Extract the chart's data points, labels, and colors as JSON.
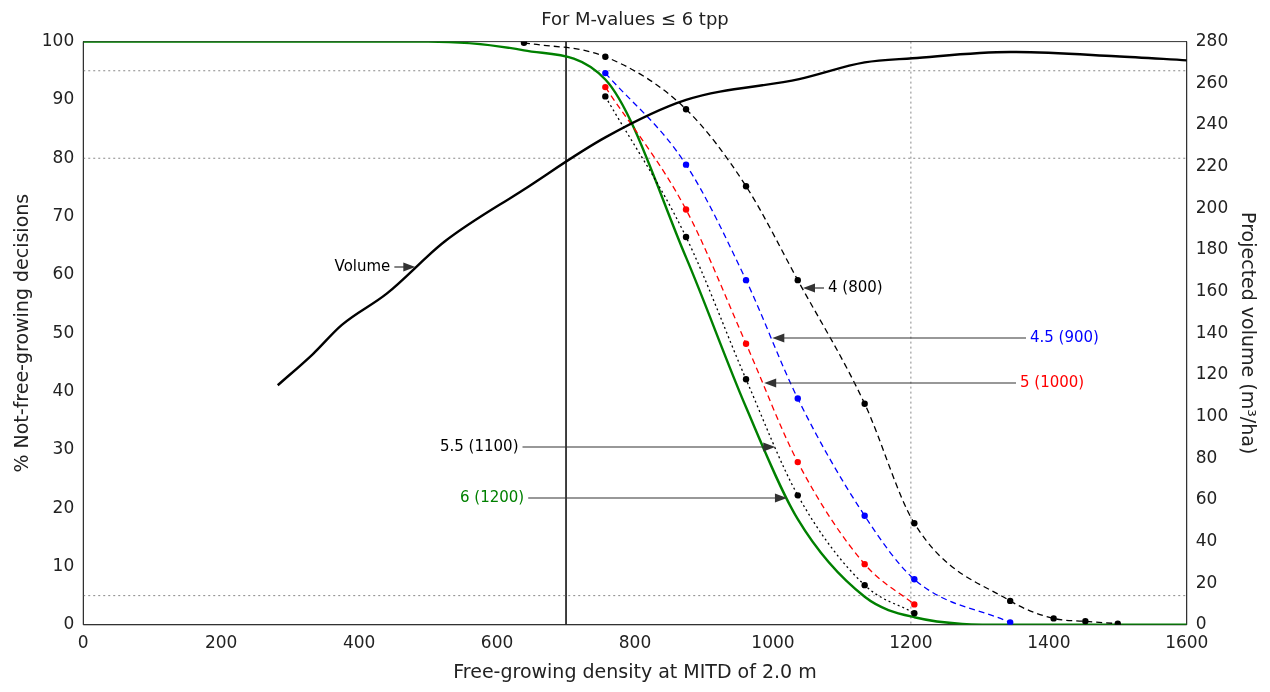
{
  "chart_data": {
    "type": "line",
    "title": "For M-values ≤ 6 tpp",
    "xlabel": "Free-growing density at MITD of 2.0 m",
    "ylabel": "% Not-free-growing decisions",
    "y2label": "Projected volume (m³/ha)",
    "xlim": [
      0,
      1600
    ],
    "xticks": [
      0,
      200,
      400,
      600,
      800,
      1000,
      1200,
      1400,
      1600
    ],
    "ylim": [
      0,
      100
    ],
    "yticks": [
      0,
      10,
      20,
      30,
      40,
      50,
      60,
      70,
      80,
      90,
      100
    ],
    "y2lim": [
      0,
      280
    ],
    "y2ticks": [
      0,
      20,
      40,
      60,
      80,
      100,
      120,
      140,
      160,
      180,
      200,
      220,
      240,
      260,
      280
    ],
    "grid": false,
    "legend": false,
    "x": [
      0,
      100,
      200,
      300,
      400,
      500,
      639,
      757,
      874,
      961,
      1036,
      1133,
      1205,
      1344,
      1407,
      1453,
      1500,
      1600
    ],
    "series": [
      {
        "name": "Volume",
        "color": "#000000",
        "axis": "y2",
        "marker": "none",
        "line_style": "solid",
        "x": [
          282,
          333,
          375,
          440,
          524,
          639,
          757,
          874,
          1038,
          1133,
          1202,
          1344,
          1497,
          1600
        ],
        "values": [
          115,
          130,
          144,
          159,
          184,
          209,
          234,
          252,
          262,
          270,
          272,
          275,
          273,
          271
        ]
      },
      {
        "name": "4 (800)",
        "color": "#000000",
        "marker": "circle",
        "line_style": "dashed",
        "x": [
          639,
          757,
          874,
          961,
          1036,
          1133,
          1205,
          1344,
          1407,
          1453,
          1500
        ],
        "values": [
          99.8,
          97.4,
          88.4,
          75.2,
          59.1,
          37.9,
          17.4,
          4.1,
          1.1,
          0.6,
          0.2
        ]
      },
      {
        "name": "4.5 (900)",
        "color": "#0000ff",
        "marker": "circle",
        "line_style": "dashed",
        "x": [
          757,
          874,
          961,
          1036,
          1133,
          1205,
          1344
        ],
        "values": [
          94.6,
          78.9,
          59.1,
          38.8,
          18.7,
          7.8,
          0.4
        ]
      },
      {
        "name": "5 (1000)",
        "color": "#ff0000",
        "marker": "circle",
        "line_style": "dashed",
        "x": [
          757,
          874,
          961,
          1036,
          1133,
          1205
        ],
        "values": [
          92.2,
          71.2,
          48.2,
          27.9,
          10.4,
          3.5
        ]
      },
      {
        "name": "5.5 (1100)",
        "color": "#000000",
        "marker": "circle",
        "line_style": "dotted",
        "x": [
          757,
          874,
          961,
          1036,
          1133,
          1205
        ],
        "values": [
          90.6,
          66.5,
          42.1,
          22.2,
          6.8,
          2
        ]
      },
      {
        "name": "6 (1200)",
        "color": "#008000",
        "marker": "none",
        "line_style": "solid",
        "values": [
          100,
          100,
          100,
          100,
          100,
          100,
          98.5,
          93.5,
          63,
          37.3,
          18.1,
          4.8,
          1.3,
          0,
          0,
          0,
          0,
          0
        ]
      }
    ],
    "ref_lines": [
      {
        "axis": "x",
        "value": 700,
        "color": "#000000",
        "line_style": "solid"
      },
      {
        "axis": "x",
        "value": 1200,
        "color": "#888888",
        "line_style": "dotted"
      },
      {
        "axis": "y",
        "value": 95,
        "color": "#888888",
        "line_style": "dotted"
      },
      {
        "axis": "y",
        "value": 80,
        "color": "#888888",
        "line_style": "dotted"
      },
      {
        "axis": "y",
        "value": 5,
        "color": "#888888",
        "line_style": "dotted"
      }
    ]
  }
}
